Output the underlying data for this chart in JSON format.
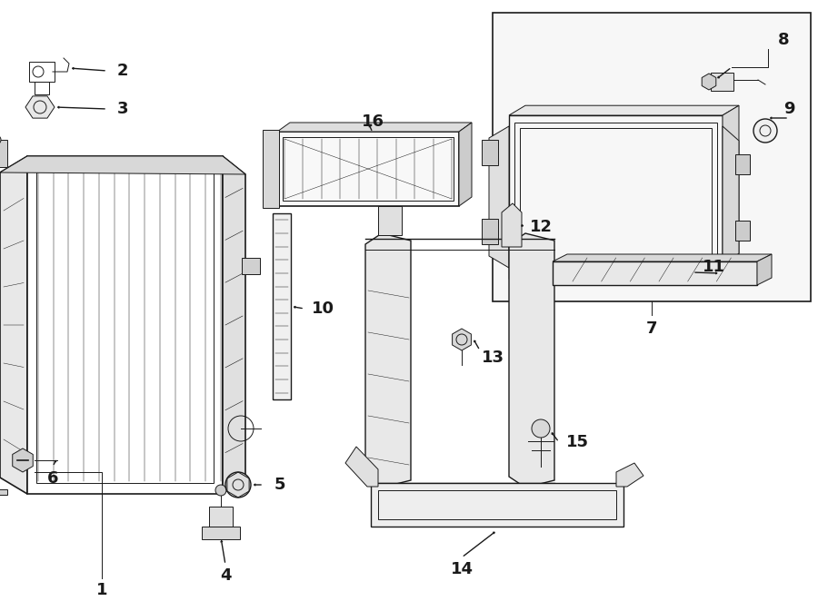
{
  "bg_color": "#ffffff",
  "line_color": "#1a1a1a",
  "fig_width": 9.0,
  "fig_height": 6.62,
  "dpi": 100,
  "xlim": [
    0,
    9.0
  ],
  "ylim": [
    0,
    6.62
  ]
}
